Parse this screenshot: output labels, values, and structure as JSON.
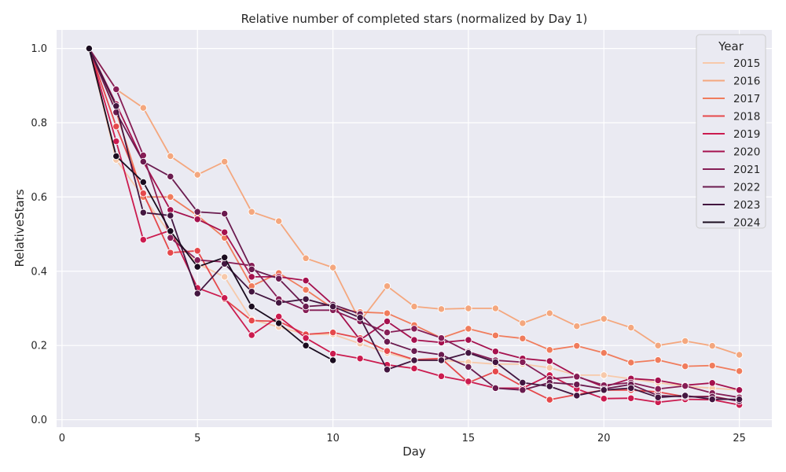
{
  "chart_data": {
    "type": "line",
    "title": "Relative number of completed stars (normalized by Day 1)",
    "xlabel": "Day",
    "ylabel": "RelativeStars",
    "xlim": [
      -0.2,
      26.2
    ],
    "ylim": [
      -0.02,
      1.05
    ],
    "xticks": [
      0,
      5,
      10,
      15,
      20,
      25
    ],
    "yticks": [
      0.0,
      0.2,
      0.4,
      0.6,
      0.8,
      1.0
    ],
    "xtick_labels": [
      "0",
      "5",
      "10",
      "15",
      "20",
      "25"
    ],
    "ytick_labels": [
      "0.0",
      "0.2",
      "0.4",
      "0.6",
      "0.8",
      "1.0"
    ],
    "grid": true,
    "legend": {
      "title": "Year",
      "placement": "top-right"
    },
    "background": "#eaeaf2",
    "x": [
      1,
      2,
      3,
      4,
      5,
      6,
      7,
      8,
      9,
      10,
      11,
      12,
      13,
      14,
      15,
      16,
      17,
      18,
      19,
      20,
      21,
      22,
      23,
      24,
      25
    ],
    "series": [
      {
        "name": "2015",
        "color": "#f7c9aa",
        "values": [
          1.0,
          0.7,
          0.6,
          0.5,
          0.42,
          0.385,
          0.27,
          0.25,
          0.23,
          0.23,
          0.205,
          0.18,
          0.16,
          0.16,
          0.155,
          0.15,
          0.15,
          0.14,
          0.12,
          0.12,
          0.11,
          0.1,
          0.09,
          0.085,
          0.08
        ]
      },
      {
        "name": "2016",
        "color": "#f4a77e",
        "values": [
          1.0,
          0.89,
          0.84,
          0.71,
          0.66,
          0.695,
          0.56,
          0.535,
          0.435,
          0.41,
          0.265,
          0.36,
          0.305,
          0.298,
          0.3,
          0.3,
          0.26,
          0.287,
          0.252,
          0.272,
          0.248,
          0.2,
          0.212,
          0.199,
          0.175
        ]
      },
      {
        "name": "2017",
        "color": "#f07c5c",
        "values": [
          1.0,
          0.83,
          0.6,
          0.6,
          0.55,
          0.49,
          0.36,
          0.395,
          0.35,
          0.3,
          0.29,
          0.287,
          0.255,
          0.22,
          0.245,
          0.227,
          0.219,
          0.188,
          0.199,
          0.18,
          0.154,
          0.161,
          0.144,
          0.146,
          0.131
        ]
      },
      {
        "name": "2018",
        "color": "#e5484b",
        "values": [
          1.0,
          0.79,
          0.61,
          0.45,
          0.455,
          0.325,
          0.267,
          0.265,
          0.23,
          0.235,
          0.22,
          0.185,
          0.162,
          0.165,
          0.1,
          0.13,
          0.09,
          0.054,
          0.068,
          0.08,
          0.08,
          0.075,
          0.062,
          0.063,
          0.05
        ]
      },
      {
        "name": "2019",
        "color": "#cb1b4f",
        "values": [
          1.0,
          0.75,
          0.485,
          0.51,
          0.355,
          0.328,
          0.228,
          0.278,
          0.22,
          0.178,
          0.165,
          0.148,
          0.138,
          0.117,
          0.103,
          0.085,
          0.085,
          0.12,
          0.083,
          0.057,
          0.058,
          0.047,
          0.055,
          0.054,
          0.04
        ]
      },
      {
        "name": "2020",
        "color": "#a5114e",
        "values": [
          1.0,
          0.85,
          0.695,
          0.565,
          0.54,
          0.505,
          0.385,
          0.385,
          0.375,
          0.31,
          0.215,
          0.265,
          0.215,
          0.208,
          0.215,
          0.184,
          0.165,
          0.158,
          0.118,
          0.088,
          0.111,
          0.106,
          0.093,
          0.099,
          0.08
        ]
      },
      {
        "name": "2021",
        "color": "#861e56",
        "values": [
          1.0,
          0.89,
          0.712,
          0.49,
          0.43,
          0.425,
          0.415,
          0.325,
          0.295,
          0.295,
          0.265,
          0.235,
          0.245,
          0.22,
          0.183,
          0.16,
          0.155,
          0.11,
          0.116,
          0.093,
          0.1,
          0.083,
          0.091,
          0.072,
          0.06
        ]
      },
      {
        "name": "2022",
        "color": "#6a1b4f",
        "values": [
          1.0,
          0.828,
          0.695,
          0.655,
          0.56,
          0.555,
          0.405,
          0.38,
          0.305,
          0.31,
          0.285,
          0.21,
          0.185,
          0.175,
          0.142,
          0.085,
          0.08,
          0.1,
          0.095,
          0.083,
          0.095,
          0.065,
          0.062,
          0.062,
          0.05
        ]
      },
      {
        "name": "2023",
        "color": "#431640",
        "values": [
          1.0,
          0.845,
          0.558,
          0.55,
          0.34,
          0.42,
          0.345,
          0.315,
          0.325,
          0.305,
          0.275,
          0.135,
          0.16,
          0.16,
          0.18,
          0.155,
          0.1,
          0.09,
          0.065,
          0.08,
          0.085,
          0.06,
          0.065,
          0.055,
          0.055
        ]
      },
      {
        "name": "2024",
        "color": "#1a0c1f",
        "values": [
          1.0,
          0.71,
          0.64,
          0.508,
          0.412,
          0.437,
          0.305,
          0.26,
          0.2,
          0.16,
          null,
          null,
          null,
          null,
          null,
          null,
          null,
          null,
          null,
          null,
          null,
          null,
          null,
          null,
          null
        ]
      }
    ]
  }
}
